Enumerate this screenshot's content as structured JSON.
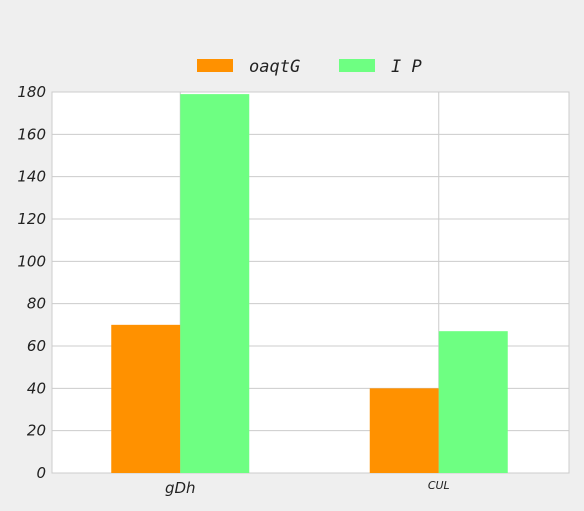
{
  "chart_data": {
    "type": "bar",
    "categories": [
      "gDh",
      "CUL"
    ],
    "series": [
      {
        "name": "oaqtG",
        "color": "#ff9100",
        "values": [
          70,
          40
        ]
      },
      {
        "name": "I P",
        "color": "#6eff82",
        "values": [
          179,
          67
        ]
      }
    ],
    "ylim": [
      0,
      180
    ],
    "yticks": [
      0,
      20,
      40,
      60,
      80,
      100,
      120,
      140,
      160,
      180
    ],
    "grid": true,
    "legend_position": "top-center",
    "title": "",
    "xlabel": "",
    "ylabel": ""
  }
}
